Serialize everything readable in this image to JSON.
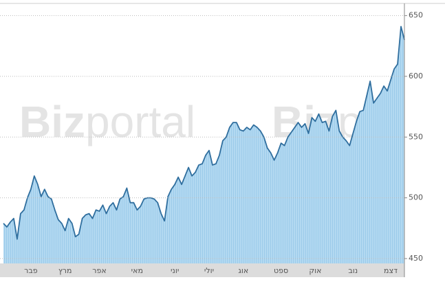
{
  "chart_data": {
    "type": "area",
    "watermark": {
      "bold": "Biz",
      "light": "portal"
    },
    "categories": [
      null,
      null,
      null,
      null,
      null,
      null,
      null,
      null,
      "פבר",
      null,
      null,
      null,
      null,
      null,
      null,
      null,
      null,
      null,
      "מרץ",
      null,
      null,
      null,
      null,
      null,
      null,
      null,
      null,
      null,
      "אפר",
      null,
      null,
      null,
      null,
      null,
      null,
      null,
      null,
      null,
      null,
      "מאי",
      null,
      null,
      null,
      null,
      null,
      null,
      null,
      null,
      null,
      null,
      "יוני",
      null,
      null,
      null,
      null,
      null,
      null,
      null,
      null,
      null,
      "יולי",
      null,
      null,
      null,
      null,
      null,
      null,
      null,
      null,
      null,
      "אוג",
      null,
      null,
      null,
      null,
      null,
      null,
      null,
      null,
      null,
      null,
      "ספט",
      null,
      null,
      null,
      null,
      null,
      null,
      null,
      null,
      null,
      "אוק",
      null,
      null,
      null,
      null,
      null,
      null,
      null,
      null,
      null,
      null,
      "נוב",
      null,
      null,
      null,
      null,
      null,
      null,
      null,
      null,
      null,
      null,
      "דצמ",
      null,
      null,
      null,
      null
    ],
    "values": [
      479,
      476,
      480,
      483,
      466,
      487,
      490,
      500,
      507,
      518,
      511,
      501,
      507,
      501,
      499,
      490,
      482,
      479,
      473,
      483,
      479,
      468,
      470,
      483,
      486,
      487,
      483,
      490,
      489,
      494,
      487,
      493,
      496,
      490,
      499,
      501,
      508,
      496,
      496,
      490,
      493,
      499,
      500,
      500,
      499,
      496,
      487,
      481,
      501,
      507,
      511,
      517,
      511,
      518,
      525,
      518,
      521,
      527,
      528,
      535,
      539,
      527,
      528,
      535,
      547,
      550,
      558,
      562,
      562,
      556,
      555,
      558,
      556,
      560,
      558,
      555,
      550,
      541,
      537,
      531,
      537,
      545,
      543,
      550,
      554,
      558,
      562,
      558,
      561,
      553,
      566,
      563,
      569,
      562,
      563,
      555,
      567,
      572,
      555,
      550,
      547,
      543,
      553,
      563,
      571,
      572,
      584,
      596,
      578,
      582,
      586,
      592,
      588,
      597,
      606,
      610,
      641,
      630
    ],
    "color": "#2f6e9e",
    "fill": "#a8d3ee",
    "ylim": [
      446,
      660
    ],
    "yticks": [
      450,
      500,
      550,
      600,
      650
    ],
    "grid": true
  }
}
